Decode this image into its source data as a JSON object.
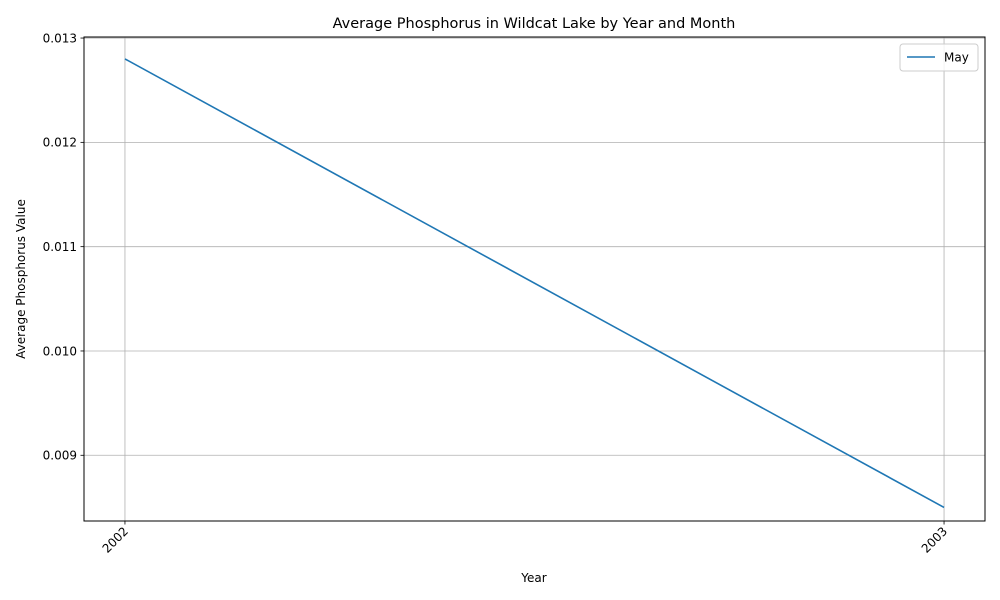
{
  "chart_data": {
    "type": "line",
    "title": "Average Phosphorus in Wildcat Lake by Year and Month",
    "xlabel": "Year",
    "ylabel": "Average Phosphorus Value",
    "x": [
      2002,
      2003
    ],
    "x_tick_labels": [
      "2002",
      "2003"
    ],
    "x_tick_rotation": "45 degrees",
    "xlim": [
      2001.95,
      2003.05
    ],
    "ylim": [
      0.00837,
      0.01301
    ],
    "y_ticks": [
      0.009,
      0.01,
      0.011,
      0.012,
      0.013
    ],
    "y_tick_labels": [
      "0.009",
      "0.010",
      "0.011",
      "0.012",
      "0.013"
    ],
    "grid": true,
    "legend_position": "upper right",
    "series": [
      {
        "name": "May",
        "color": "#1f77b4",
        "values": [
          0.0128,
          0.0085
        ]
      }
    ]
  }
}
